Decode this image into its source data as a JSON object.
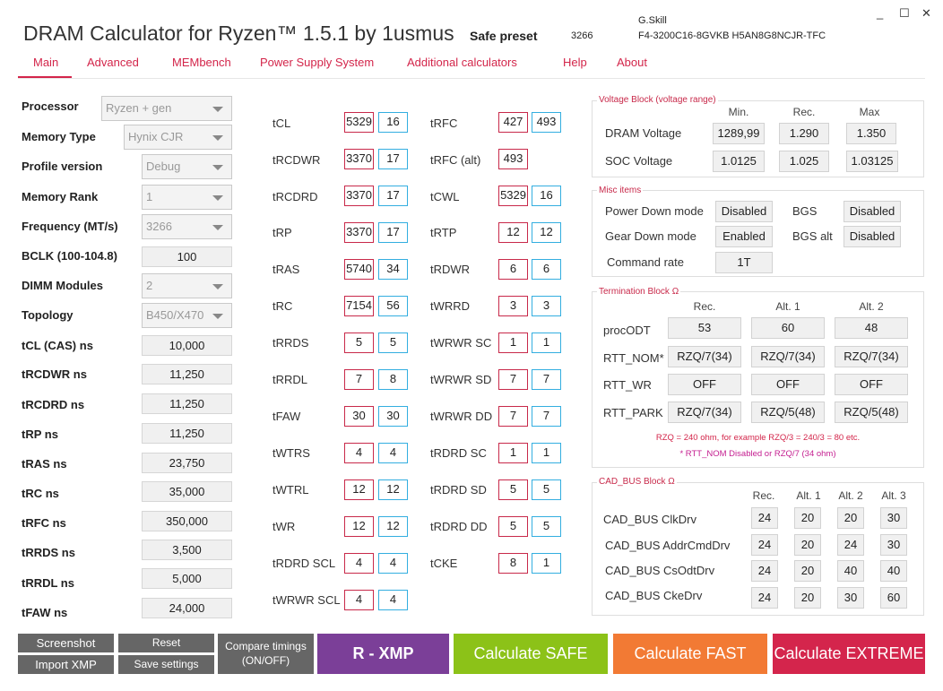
{
  "app": {
    "title": "DRAM Calculator for Ryzen™ 1.5.1 by 1usmus",
    "preset_label": "Safe preset",
    "preset_value": "3266",
    "kit_brand": "G.Skill",
    "kit_part": "F4-3200C16-8GVKB  H5AN8G8NCJR-TFC",
    "win_min": "_",
    "win_max": "☐",
    "win_close": "✕"
  },
  "menu": [
    "Main",
    "Advanced",
    "MEMbench",
    "Power Supply System",
    "Additional calculators",
    "Help",
    "About"
  ],
  "params": {
    "processor": {
      "label": "Processor",
      "value": "Ryzen + gen"
    },
    "memory_type": {
      "label": "Memory Type",
      "value": "Hynix CJR"
    },
    "profile_version": {
      "label": "Profile version",
      "value": "Debug"
    },
    "memory_rank": {
      "label": "Memory Rank",
      "value": "1"
    },
    "frequency": {
      "label": "Frequency (MT/s)",
      "value": "3266"
    },
    "bclk": {
      "label": "BCLK (100-104.8)",
      "value": "100"
    },
    "dimm_modules": {
      "label": "DIMM Modules",
      "value": "2"
    },
    "topology": {
      "label": "Topology",
      "value": "B450/X470"
    },
    "tcl_ns": {
      "label": "tCL (CAS) ns",
      "value": "10,000"
    },
    "trcdwr_ns": {
      "label": "tRCDWR ns",
      "value": "11,250"
    },
    "trcdrd_ns": {
      "label": "tRCDRD ns",
      "value": "11,250"
    },
    "trp_ns": {
      "label": "tRP ns",
      "value": "11,250"
    },
    "tras_ns": {
      "label": "tRAS ns",
      "value": "23,750"
    },
    "trc_ns": {
      "label": "tRC ns",
      "value": "35,000"
    },
    "trfc_ns": {
      "label": "tRFC ns",
      "value": "350,000"
    },
    "trrds_ns": {
      "label": "tRRDS ns",
      "value": "3,500"
    },
    "trrdl_ns": {
      "label": "tRRDL ns",
      "value": "5,000"
    },
    "tfaw_ns": {
      "label": "tFAW ns",
      "value": "24,000"
    }
  },
  "timings_left": [
    {
      "label": "tCL",
      "red": "5329",
      "blue": "16"
    },
    {
      "label": "tRCDWR",
      "red": "3370",
      "blue": "17"
    },
    {
      "label": "tRCDRD",
      "red": "3370",
      "blue": "17"
    },
    {
      "label": "tRP",
      "red": "3370",
      "blue": "17"
    },
    {
      "label": "tRAS",
      "red": "5740",
      "blue": "34"
    },
    {
      "label": "tRC",
      "red": "7154",
      "blue": "56"
    },
    {
      "label": "tRRDS",
      "red": "5",
      "blue": "5"
    },
    {
      "label": "tRRDL",
      "red": "7",
      "blue": "8"
    },
    {
      "label": "tFAW",
      "red": "30",
      "blue": "30"
    },
    {
      "label": "tWTRS",
      "red": "4",
      "blue": "4"
    },
    {
      "label": "tWTRL",
      "red": "12",
      "blue": "12"
    },
    {
      "label": "tWR",
      "red": "12",
      "blue": "12"
    },
    {
      "label": "tRDRD SCL",
      "red": "4",
      "blue": "4"
    },
    {
      "label": "tWRWR SCL",
      "red": "4",
      "blue": "4"
    }
  ],
  "timings_right": [
    {
      "label": "tRFC",
      "red": "427",
      "blue": "493"
    },
    {
      "label": "tRFC (alt)",
      "red": "493",
      "blue": ""
    },
    {
      "label": "tCWL",
      "red": "5329",
      "blue": "16"
    },
    {
      "label": "tRTP",
      "red": "12",
      "blue": "12"
    },
    {
      "label": "tRDWR",
      "red": "6",
      "blue": "6"
    },
    {
      "label": "tWRRD",
      "red": "3",
      "blue": "3"
    },
    {
      "label": "tWRWR SC",
      "red": "1",
      "blue": "1"
    },
    {
      "label": "tWRWR SD",
      "red": "7",
      "blue": "7"
    },
    {
      "label": "tWRWR DD",
      "red": "7",
      "blue": "7"
    },
    {
      "label": "tRDRD SC",
      "red": "1",
      "blue": "1"
    },
    {
      "label": "tRDRD SD",
      "red": "5",
      "blue": "5"
    },
    {
      "label": "tRDRD DD",
      "red": "5",
      "blue": "5"
    },
    {
      "label": "tCKE",
      "red": "8",
      "blue": "1"
    }
  ],
  "voltage": {
    "title": "Voltage Block (voltage range)",
    "headers": [
      "Min.",
      "Rec.",
      "Max"
    ],
    "dram": {
      "label": "DRAM Voltage",
      "min": "1289,99",
      "rec": "1.290",
      "max": "1.350"
    },
    "soc": {
      "label": "SOC Voltage",
      "min": "1.0125",
      "rec": "1.025",
      "max": "1.03125"
    }
  },
  "misc": {
    "title": "Misc items",
    "power_down": {
      "label": "Power Down mode",
      "value": "Disabled"
    },
    "bgs": {
      "label": "BGS",
      "value": "Disabled"
    },
    "gear_down": {
      "label": "Gear Down mode",
      "value": "Enabled"
    },
    "bgs_alt": {
      "label": "BGS alt",
      "value": "Disabled"
    },
    "command_rate": {
      "label": "Command rate",
      "value": "1T"
    }
  },
  "termination": {
    "title": "Termination Block Ω",
    "headers": [
      "Rec.",
      "Alt. 1",
      "Alt. 2"
    ],
    "rows": [
      {
        "label": "procODT",
        "values": [
          "53",
          "60",
          "48"
        ]
      },
      {
        "label": "RTT_NOM*",
        "values": [
          "RZQ/7(34)",
          "RZQ/7(34)",
          "RZQ/7(34)"
        ]
      },
      {
        "label": "RTT_WR",
        "values": [
          "OFF",
          "OFF",
          "OFF"
        ]
      },
      {
        "label": "RTT_PARK",
        "values": [
          "RZQ/7(34)",
          "RZQ/5(48)",
          "RZQ/5(48)"
        ]
      }
    ],
    "note1": "RZQ = 240 ohm, for example RZQ/3 = 240/3 = 80 etc.",
    "note2": "* RTT_NOM Disabled or RZQ/7 (34 ohm)"
  },
  "cadbus": {
    "title": "CAD_BUS Block Ω",
    "headers": [
      "Rec.",
      "Alt. 1",
      "Alt. 2",
      "Alt. 3"
    ],
    "rows": [
      {
        "label": "CAD_BUS ClkDrv",
        "values": [
          "24",
          "20",
          "20",
          "30"
        ]
      },
      {
        "label": "CAD_BUS AddrCmdDrv",
        "values": [
          "24",
          "20",
          "24",
          "30"
        ]
      },
      {
        "label": "CAD_BUS CsOdtDrv",
        "values": [
          "24",
          "20",
          "40",
          "40"
        ]
      },
      {
        "label": "CAD_BUS CkeDrv",
        "values": [
          "24",
          "20",
          "30",
          "60"
        ]
      }
    ]
  },
  "buttons": {
    "screenshot": "Screenshot",
    "reset": "Reset",
    "import_xmp": "Import XMP",
    "save_settings": "Save settings",
    "compare_line1": "Compare timings",
    "compare_line2": "(ON/OFF)",
    "rxmp": "R - XMP",
    "safe": "Calculate SAFE",
    "fast": "Calculate FAST",
    "extreme": "Calculate EXTREME"
  },
  "colors": {
    "accent": "#d3254a",
    "rxmp": "#7b3f98",
    "safe": "#8cc218",
    "fast": "#f27a34",
    "extreme": "#d4254c",
    "gray_button": "#666666"
  }
}
